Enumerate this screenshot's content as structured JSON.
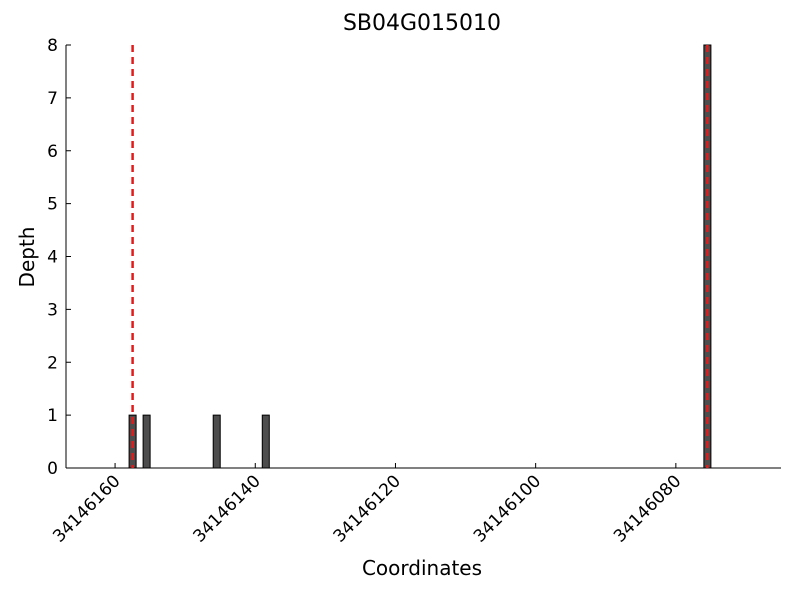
{
  "chart_data": {
    "type": "bar",
    "title": "SB04G015010",
    "x_label": "Coordinates",
    "y_label": "Depth",
    "x": [
      34146157,
      34146155,
      34146145,
      34146138,
      34146075
    ],
    "values": [
      1,
      1,
      1,
      1,
      8
    ],
    "bar_width": 1,
    "color": "#4d4d4d",
    "xlim": [
      34146167,
      34146065
    ],
    "xticks": [
      34146160,
      34146140,
      34146120,
      34146100,
      34146080
    ],
    "ylim": [
      0,
      8
    ],
    "yticks": [
      0,
      1,
      2,
      3,
      4,
      5,
      6,
      7,
      8
    ],
    "vlines": [
      34146157.5,
      34146075.5
    ],
    "vline_color": "#e31a1c"
  }
}
